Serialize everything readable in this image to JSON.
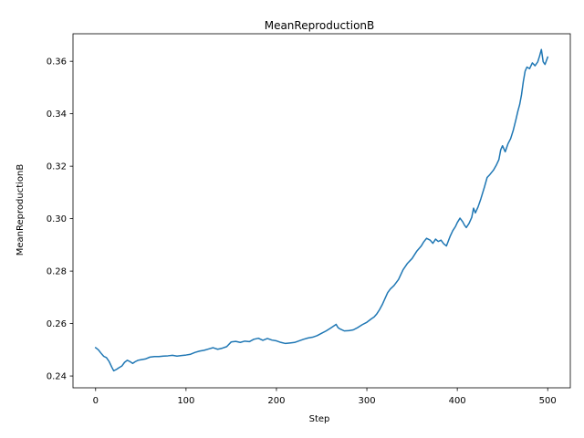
{
  "chart_data": {
    "type": "line",
    "title": "MeanReproductionB",
    "xlabel": "Step",
    "ylabel": "MeanReproductionB",
    "xlim": [
      -25,
      525
    ],
    "ylim": [
      0.2355,
      0.3705
    ],
    "xticks": [
      0,
      100,
      200,
      300,
      400,
      500
    ],
    "xtick_labels": [
      "0",
      "100",
      "200",
      "300",
      "400",
      "500"
    ],
    "yticks": [
      0.24,
      0.26,
      0.28,
      0.3,
      0.32,
      0.34,
      0.36
    ],
    "ytick_labels": [
      "0.24",
      "0.26",
      "0.28",
      "0.30",
      "0.32",
      "0.34",
      "0.36"
    ],
    "grid": false,
    "series": [
      {
        "name": "MeanReproductionB",
        "color": "#1f77b4",
        "x": [
          0,
          3,
          6,
          9,
          12,
          15,
          18,
          20,
          23,
          26,
          29,
          32,
          35,
          38,
          41,
          44,
          47,
          50,
          55,
          60,
          65,
          70,
          75,
          80,
          85,
          90,
          95,
          100,
          105,
          110,
          115,
          120,
          125,
          130,
          135,
          140,
          145,
          150,
          155,
          160,
          165,
          170,
          175,
          180,
          185,
          190,
          195,
          200,
          205,
          210,
          215,
          220,
          225,
          230,
          235,
          240,
          245,
          250,
          255,
          260,
          263,
          266,
          268,
          270,
          275,
          280,
          285,
          290,
          295,
          300,
          305,
          308,
          311,
          314,
          317,
          320,
          323,
          326,
          330,
          335,
          340,
          345,
          350,
          355,
          360,
          363,
          366,
          370,
          373,
          376,
          379,
          382,
          385,
          388,
          392,
          395,
          398,
          400,
          403,
          406,
          408,
          410,
          413,
          416,
          418,
          420,
          423,
          426,
          430,
          433,
          436,
          440,
          443,
          446,
          448,
          450,
          453,
          456,
          459,
          462,
          465,
          467,
          469,
          471,
          473,
          475,
          477,
          480,
          483,
          486,
          489,
          491,
          493,
          495,
          497,
          500
        ],
        "y": [
          0.2508,
          0.25,
          0.2487,
          0.2475,
          0.247,
          0.2455,
          0.2433,
          0.242,
          0.2425,
          0.2432,
          0.2438,
          0.2452,
          0.246,
          0.2455,
          0.2448,
          0.2455,
          0.246,
          0.2462,
          0.2465,
          0.2472,
          0.2474,
          0.2474,
          0.2476,
          0.2477,
          0.2479,
          0.2476,
          0.2478,
          0.248,
          0.2483,
          0.249,
          0.2495,
          0.2498,
          0.2503,
          0.2508,
          0.2502,
          0.2506,
          0.2512,
          0.253,
          0.2532,
          0.2528,
          0.2533,
          0.2531,
          0.254,
          0.2544,
          0.2536,
          0.2543,
          0.2537,
          0.2534,
          0.2528,
          0.2524,
          0.2526,
          0.2528,
          0.2534,
          0.254,
          0.2545,
          0.2548,
          0.2554,
          0.2563,
          0.2572,
          0.2583,
          0.259,
          0.2597,
          0.2585,
          0.258,
          0.2572,
          0.2573,
          0.2576,
          0.2585,
          0.2596,
          0.2605,
          0.2618,
          0.2625,
          0.2637,
          0.2653,
          0.2672,
          0.2695,
          0.2718,
          0.2732,
          0.2745,
          0.2768,
          0.2805,
          0.283,
          0.2848,
          0.2875,
          0.2895,
          0.2912,
          0.2925,
          0.2918,
          0.2906,
          0.2922,
          0.2913,
          0.2918,
          0.2904,
          0.2896,
          0.2932,
          0.2954,
          0.297,
          0.2985,
          0.3002,
          0.2988,
          0.2975,
          0.2966,
          0.2982,
          0.3005,
          0.304,
          0.3022,
          0.3045,
          0.3075,
          0.312,
          0.3157,
          0.3168,
          0.3185,
          0.3203,
          0.3225,
          0.3262,
          0.3278,
          0.3255,
          0.3285,
          0.3305,
          0.3338,
          0.338,
          0.341,
          0.3435,
          0.3472,
          0.3522,
          0.3562,
          0.3578,
          0.3572,
          0.3594,
          0.3583,
          0.3598,
          0.362,
          0.3645,
          0.3598,
          0.3588,
          0.3616
        ]
      }
    ]
  }
}
